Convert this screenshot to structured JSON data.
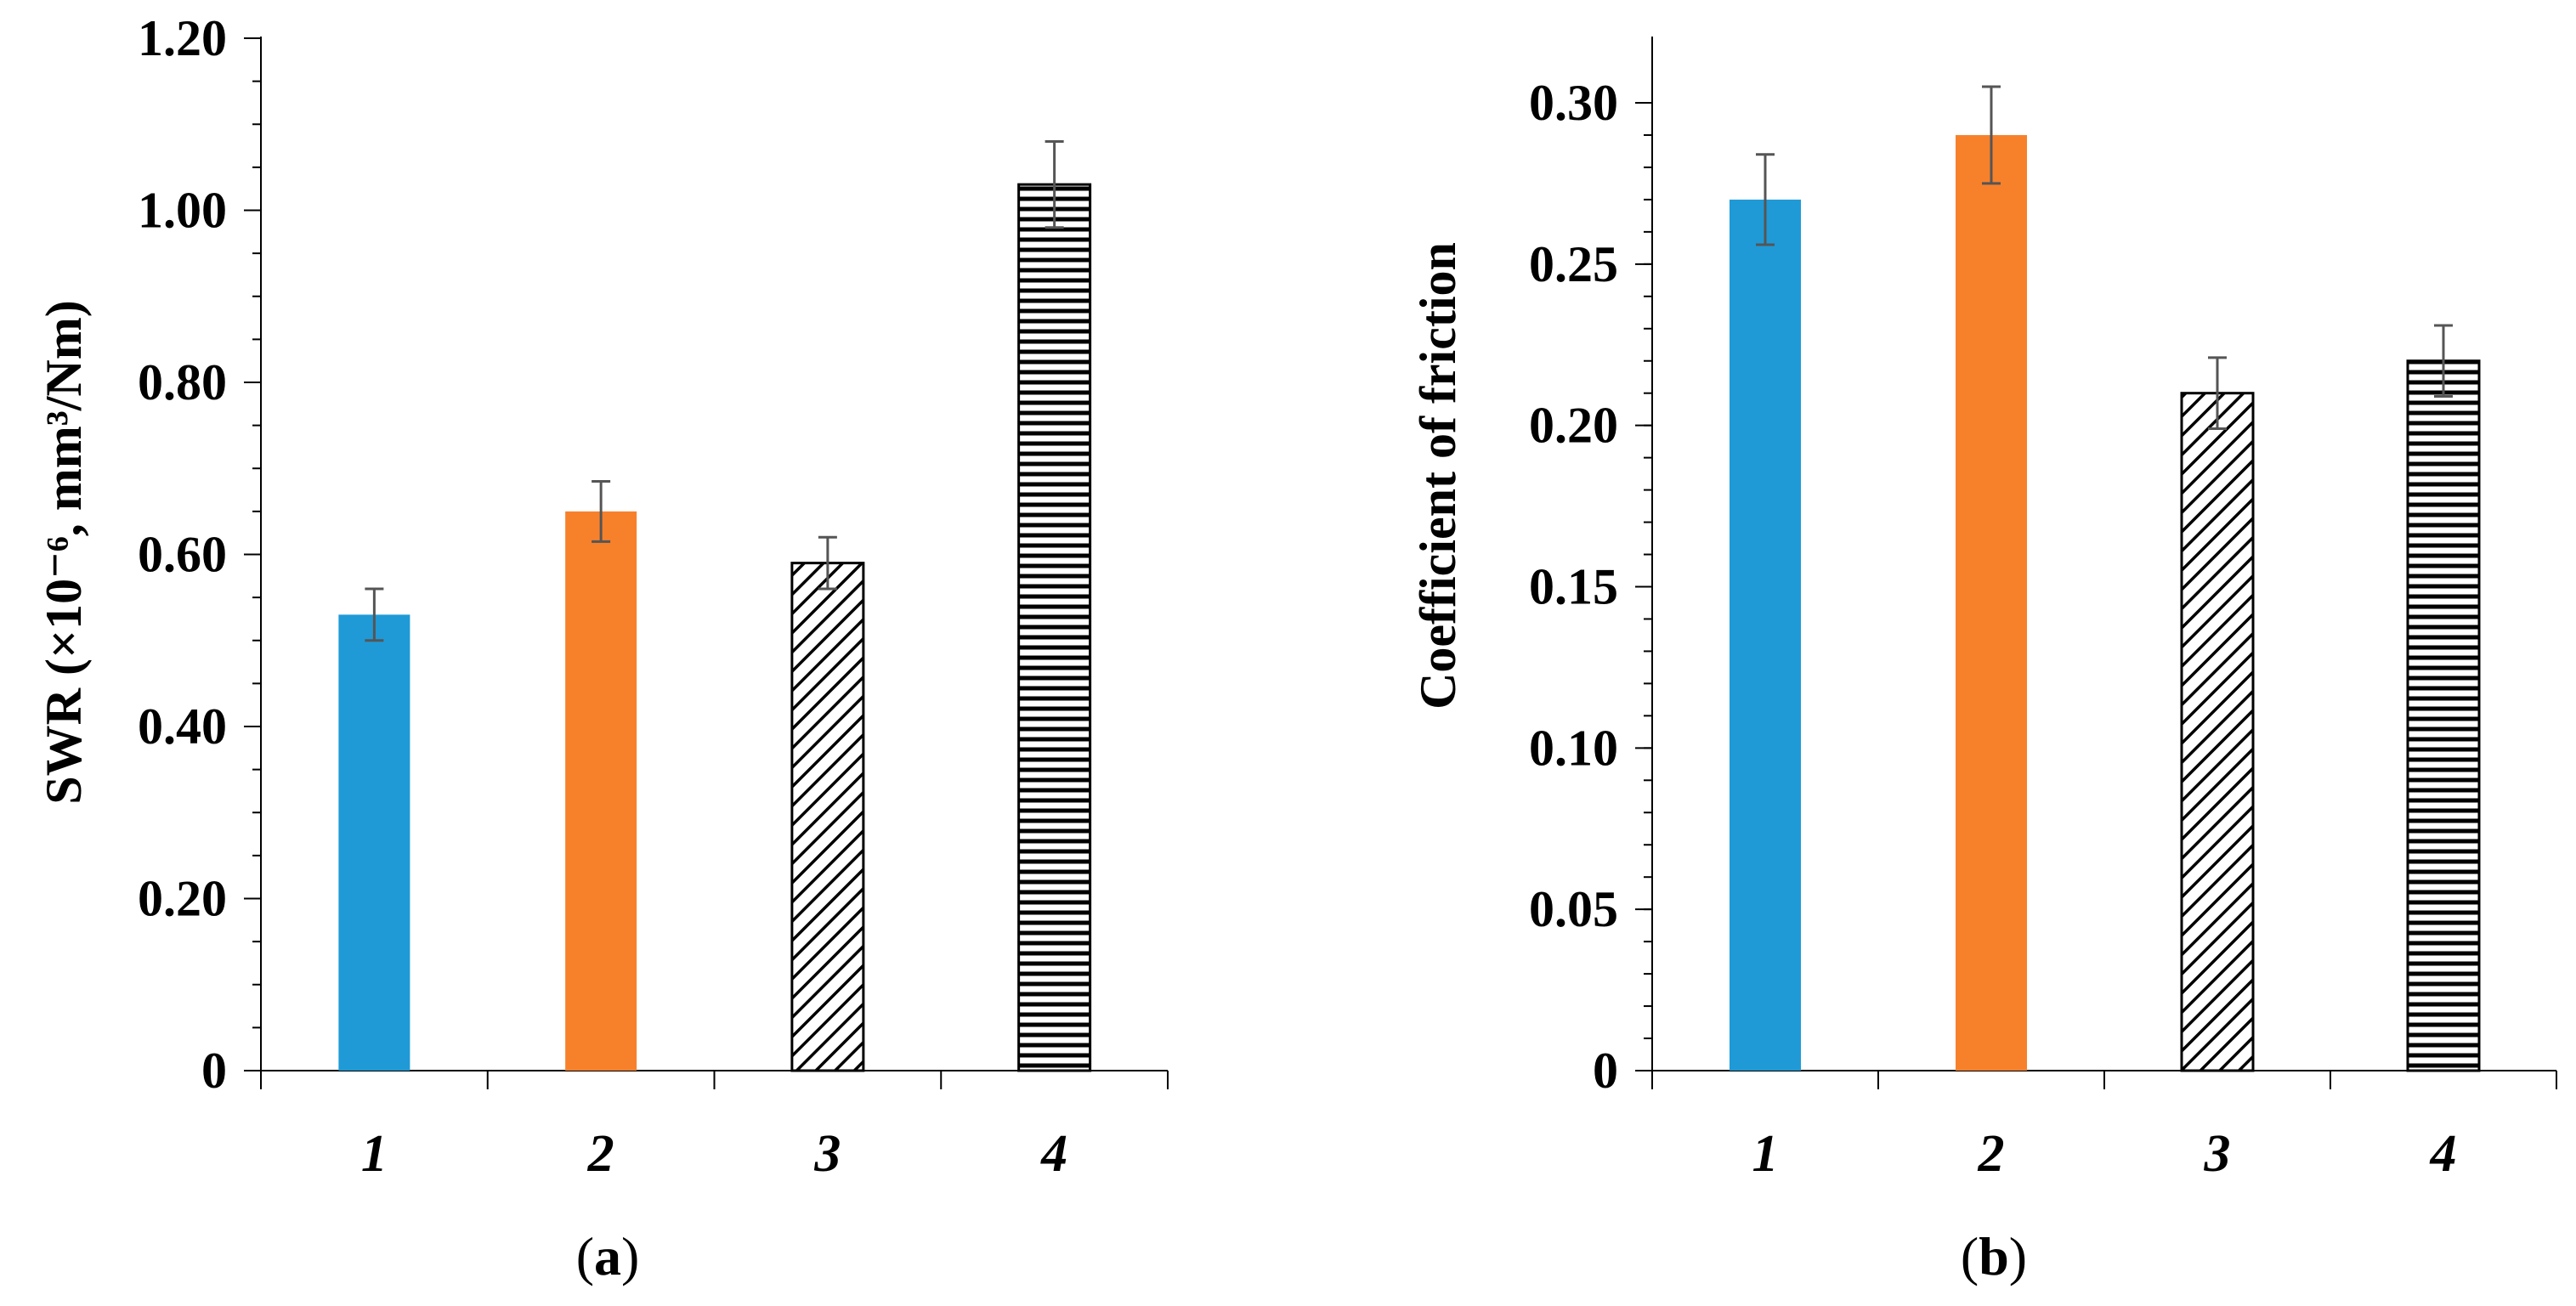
{
  "chart_data": [
    {
      "type": "bar",
      "panel_label": "(a)",
      "panel_label_parts": [
        "(",
        "a",
        ")"
      ],
      "ylabel": "SWR (×10⁻⁶, mm³/Nm)",
      "categories": [
        "1",
        "2",
        "3",
        "4"
      ],
      "values": [
        0.53,
        0.65,
        0.59,
        1.03
      ],
      "errors": [
        0.03,
        0.035,
        0.03,
        0.05
      ],
      "ylim": [
        0,
        1.2
      ],
      "y_ticks": [
        0,
        0.2,
        0.4,
        0.6,
        0.8,
        1.0,
        1.2
      ],
      "y_tick_labels": [
        "0",
        "0.20",
        "0.40",
        "0.60",
        "0.80",
        "1.00",
        "1.20"
      ],
      "minor_tick_step": 0.05,
      "bar_styles": [
        "solid",
        "solid",
        "diagonal-hatch",
        "horizontal-hatch"
      ],
      "bar_colors": [
        "#1f9ad6",
        "#f7812b",
        "#000000",
        "#000000"
      ],
      "grid": false
    },
    {
      "type": "bar",
      "panel_label": "(b)",
      "panel_label_parts": [
        "(",
        "b",
        ")"
      ],
      "ylabel": "Coefficient of friction",
      "categories": [
        "1",
        "2",
        "3",
        "4"
      ],
      "values": [
        0.27,
        0.29,
        0.21,
        0.22
      ],
      "errors": [
        0.014,
        0.015,
        0.011,
        0.011
      ],
      "ylim": [
        0,
        0.3
      ],
      "y_ticks": [
        0,
        0.05,
        0.1,
        0.15,
        0.2,
        0.25,
        0.3
      ],
      "y_tick_labels": [
        "0",
        "0.05",
        "0.10",
        "0.15",
        "0.20",
        "0.25",
        "0.30"
      ],
      "minor_tick_step": 0.01,
      "bar_styles": [
        "solid",
        "solid",
        "diagonal-hatch",
        "horizontal-hatch"
      ],
      "bar_colors": [
        "#1f9ad6",
        "#f7812b",
        "#000000",
        "#000000"
      ],
      "grid": false
    }
  ]
}
